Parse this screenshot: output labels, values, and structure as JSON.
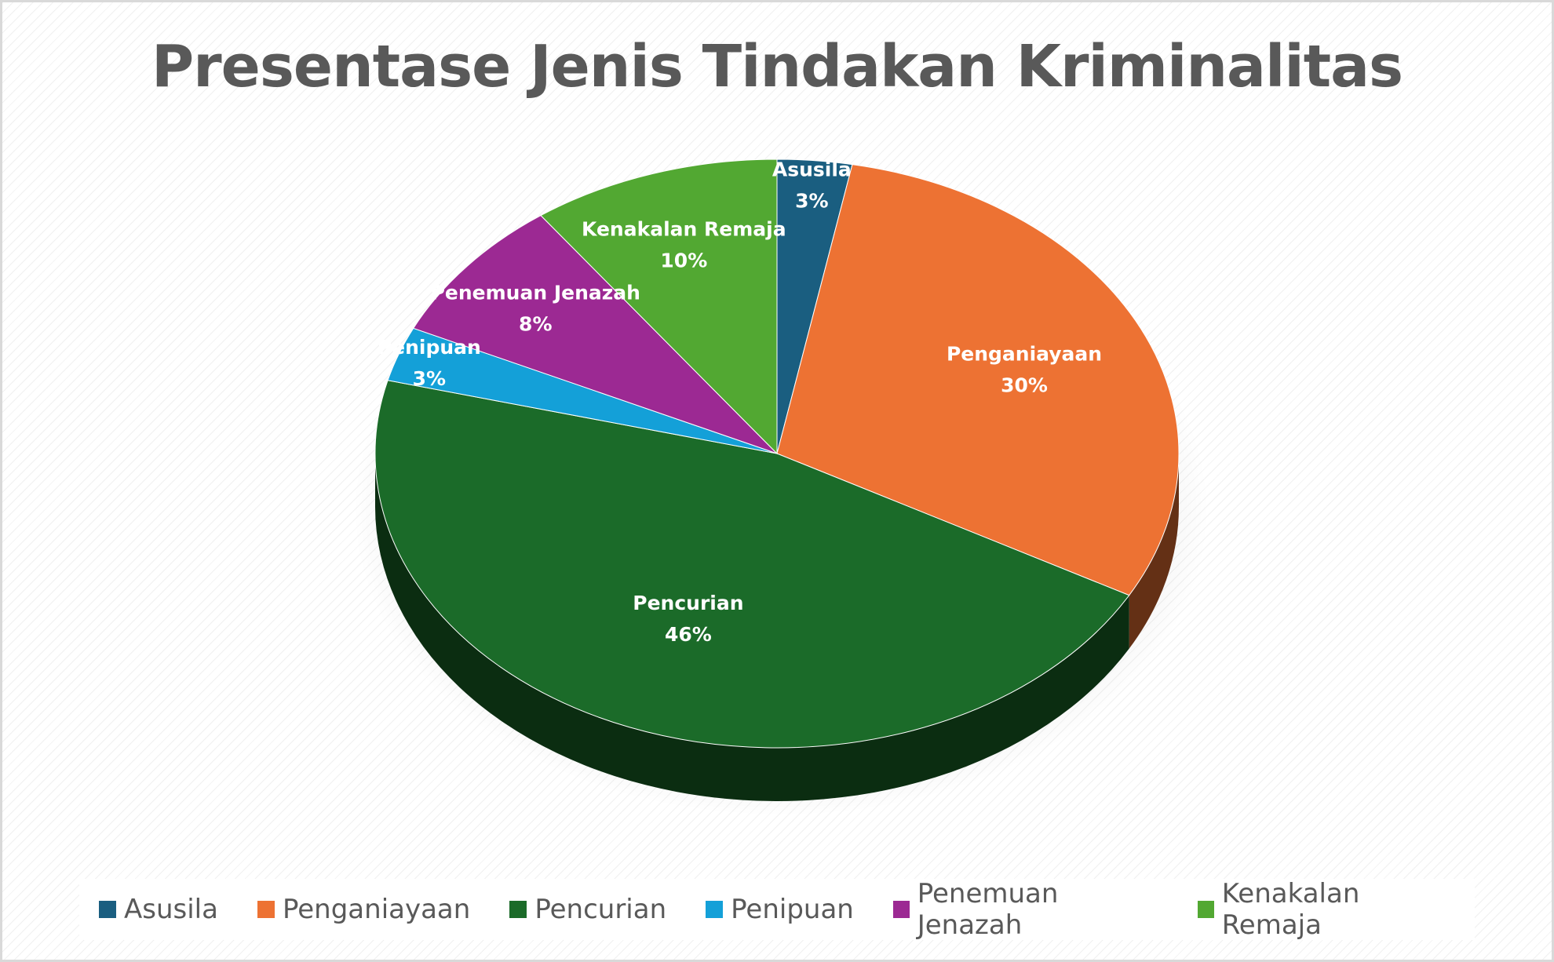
{
  "chart_data": {
    "type": "pie",
    "title": "Presentase Jenis Tindakan Kriminalitas",
    "style": "3d-tilted",
    "legend_position": "bottom",
    "slices": [
      {
        "name": "Asusila",
        "value": 3,
        "label": "3%",
        "color": "#1a5e80"
      },
      {
        "name": "Penganiayaan",
        "value": 30,
        "label": "30%",
        "color": "#ed7233"
      },
      {
        "name": "Pencurian",
        "value": 46,
        "label": "46%",
        "color": "#1b6b29"
      },
      {
        "name": "Penipuan",
        "value": 3,
        "label": "3%",
        "color": "#14a0d8"
      },
      {
        "name": "Penemuan Jenazah",
        "value": 8,
        "label": "8%",
        "color": "#9c2993"
      },
      {
        "name": "Kenakalan Remaja",
        "value": 10,
        "label": "10%",
        "color": "#52a832"
      }
    ]
  }
}
